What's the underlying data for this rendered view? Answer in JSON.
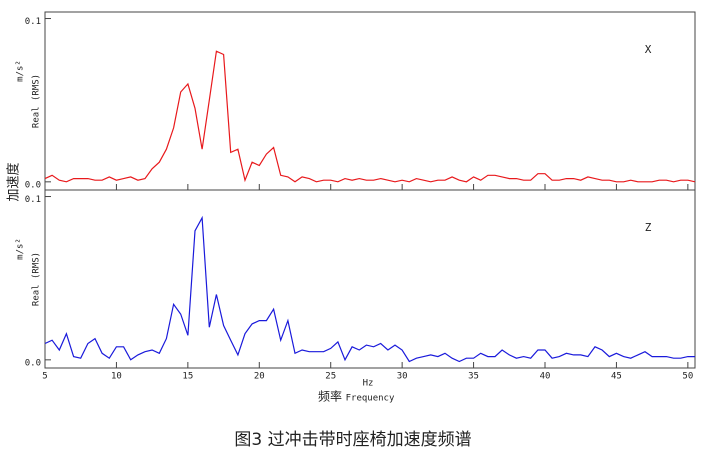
{
  "y_axis_label": "加速度",
  "x_axis_label": "频率",
  "caption": "图3 过冲击带时座椅加速度频谱",
  "chart_data": [
    {
      "type": "line",
      "annotation": "X",
      "ylabel": "m/s²",
      "ylabel_secondary": "Real (RMS)",
      "color": "#e8191c",
      "xlim": [
        5,
        50.5
      ],
      "ylim": [
        -0.005,
        0.104
      ],
      "yticks": [
        {
          "value": 0,
          "label": "0.0"
        },
        {
          "value": 0.1,
          "label": "0.1"
        }
      ],
      "x": [
        5,
        5.5,
        6,
        6.5,
        7,
        7.5,
        8,
        8.5,
        9,
        9.5,
        10,
        10.5,
        11,
        11.5,
        12,
        12.5,
        13,
        13.5,
        14,
        14.5,
        15,
        15.5,
        16,
        16.5,
        17,
        17.5,
        18,
        18.5,
        19,
        19.5,
        20,
        20.5,
        21,
        21.5,
        22,
        22.5,
        23,
        23.5,
        24,
        24.5,
        25,
        25.5,
        26,
        26.5,
        27,
        27.5,
        28,
        28.5,
        29,
        29.5,
        30,
        30.5,
        31,
        31.5,
        32,
        32.5,
        33,
        33.5,
        34,
        34.5,
        35,
        35.5,
        36,
        36.5,
        37,
        37.5,
        38,
        38.5,
        39,
        39.5,
        40,
        40.5,
        41,
        41.5,
        42,
        42.5,
        43,
        43.5,
        44,
        44.5,
        45,
        45.5,
        46,
        46.5,
        47,
        47.5,
        48,
        48.5,
        49,
        49.5,
        50,
        50.5
      ],
      "values": [
        0.002,
        0.004,
        0.001,
        0,
        0.002,
        0.002,
        0.002,
        0.001,
        0.001,
        0.003,
        0.001,
        0.002,
        0.003,
        0.001,
        0.002,
        0.008,
        0.012,
        0.02,
        0.033,
        0.055,
        0.06,
        0.045,
        0.02,
        0.05,
        0.08,
        0.078,
        0.018,
        0.02,
        0.001,
        0.012,
        0.01,
        0.017,
        0.021,
        0.004,
        0.003,
        0,
        0.003,
        0.002,
        0,
        0.001,
        0.001,
        0,
        0.002,
        0.001,
        0.002,
        0.001,
        0.001,
        0.002,
        0.001,
        0,
        0.001,
        0,
        0.002,
        0.001,
        0,
        0.001,
        0.001,
        0.003,
        0.001,
        0,
        0.003,
        0.001,
        0.004,
        0.004,
        0.003,
        0.002,
        0.002,
        0.001,
        0.001,
        0.005,
        0.005,
        0.001,
        0.001,
        0.002,
        0.002,
        0.001,
        0.003,
        0.002,
        0.001,
        0.001,
        0,
        0,
        0.001,
        0,
        0,
        0,
        0.001,
        0.001,
        0,
        0.001,
        0.001,
        0
      ]
    },
    {
      "type": "line",
      "annotation": "Z",
      "ylabel": "m/s²",
      "ylabel_secondary": "Real (RMS)",
      "color": "#1a1adb",
      "xlim": [
        5,
        50.5
      ],
      "ylim": [
        -0.005,
        0.104
      ],
      "yticks": [
        {
          "value": 0,
          "label": "0.0"
        },
        {
          "value": 0.1,
          "label": "0.1"
        }
      ],
      "xticks": [
        5,
        10,
        15,
        20,
        25,
        30,
        35,
        40,
        45,
        50
      ],
      "xlabel": "Hz",
      "xlabel_secondary": "Frequency",
      "x": [
        5,
        5.5,
        6,
        6.5,
        7,
        7.5,
        8,
        8.5,
        9,
        9.5,
        10,
        10.5,
        11,
        11.5,
        12,
        12.5,
        13,
        13.5,
        14,
        14.5,
        15,
        15.5,
        16,
        16.5,
        17,
        17.5,
        18,
        18.5,
        19,
        19.5,
        20,
        20.5,
        21,
        21.5,
        22,
        22.5,
        23,
        23.5,
        24,
        24.5,
        25,
        25.5,
        26,
        26.5,
        27,
        27.5,
        28,
        28.5,
        29,
        29.5,
        30,
        30.5,
        31,
        31.5,
        32,
        32.5,
        33,
        33.5,
        34,
        34.5,
        35,
        35.5,
        36,
        36.5,
        37,
        37.5,
        38,
        38.5,
        39,
        39.5,
        40,
        40.5,
        41,
        41.5,
        42,
        42.5,
        43,
        43.5,
        44,
        44.5,
        45,
        45.5,
        46,
        46.5,
        47,
        47.5,
        48,
        48.5,
        49,
        49.5,
        50,
        50.5
      ],
      "values": [
        0.01,
        0.012,
        0.006,
        0.016,
        0.002,
        0.001,
        0.01,
        0.013,
        0.004,
        0.001,
        0.008,
        0.008,
        0,
        0.003,
        0.005,
        0.006,
        0.004,
        0.013,
        0.034,
        0.028,
        0.015,
        0.079,
        0.087,
        0.02,
        0.04,
        0.021,
        0.012,
        0.003,
        0.016,
        0.022,
        0.024,
        0.024,
        0.031,
        0.012,
        0.024,
        0.004,
        0.006,
        0.005,
        0.005,
        0.005,
        0.007,
        0.011,
        0,
        0.008,
        0.006,
        0.009,
        0.008,
        0.01,
        0.006,
        0.009,
        0.006,
        -0.001,
        0.001,
        0.002,
        0.003,
        0.002,
        0.004,
        0.001,
        -0.001,
        0.001,
        0.001,
        0.004,
        0.002,
        0.002,
        0.006,
        0.003,
        0.001,
        0.002,
        0.001,
        0.006,
        0.006,
        0.001,
        0.002,
        0.004,
        0.003,
        0.003,
        0.002,
        0.008,
        0.006,
        0.002,
        0.004,
        0.002,
        0.001,
        0.003,
        0.005,
        0.002,
        0.002,
        0.002,
        0.001,
        0.001,
        0.002,
        0.002
      ]
    }
  ]
}
